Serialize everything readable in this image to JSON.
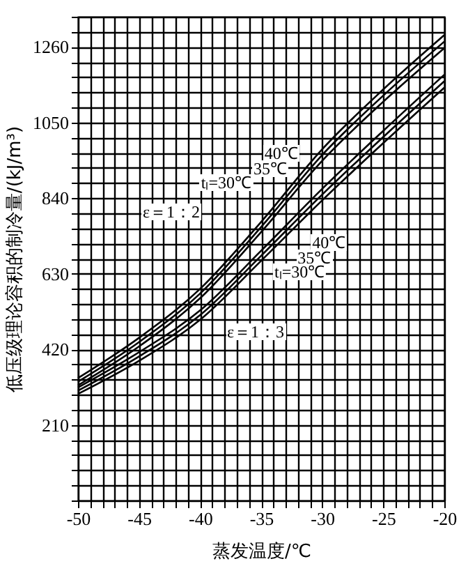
{
  "chart_data": {
    "type": "line",
    "xlabel": "蒸发温度/℃",
    "ylabel": "低压级理论容积的制冷量/(kJ/m³)",
    "x": [
      -50,
      -45,
      -40,
      -35,
      -30,
      -25,
      -20
    ],
    "series": [
      {
        "color": "#000000",
        "values": [
          340,
          452,
          588,
          774,
          976,
          1142,
          1293
        ]
      },
      {
        "color": "#000000",
        "values": [
          330,
          440,
          575,
          760,
          960,
          1125,
          1275
        ]
      },
      {
        "color": "#000000",
        "values": [
          320,
          428,
          562,
          746,
          944,
          1108,
          1257
        ]
      },
      {
        "color": "#000000",
        "values": [
          314,
          412,
          528,
          694,
          866,
          1027,
          1183
        ]
      },
      {
        "color": "#000000",
        "values": [
          305,
          400,
          515,
          680,
          850,
          1010,
          1165
        ]
      },
      {
        "color": "#000000",
        "values": [
          296,
          388,
          502,
          666,
          834,
          993,
          1147
        ]
      }
    ],
    "annotations": [
      "ε＝1：2",
      "ε＝1：3",
      "40℃",
      "35℃",
      "tₗ=30℃",
      "40℃",
      "35℃",
      "tₗ=30℃"
    ],
    "xlim": [
      -50,
      -20
    ],
    "ylim": [
      0,
      1344
    ],
    "xticks": [
      -50,
      {
        "value": -49,
        "label": null
      },
      {
        "value": -48,
        "label": null
      },
      {
        "value": -47,
        "label": null
      },
      {
        "value": -46,
        "label": null
      },
      -45,
      {
        "value": -44,
        "label": null
      },
      {
        "value": -43,
        "label": null
      },
      {
        "value": -42,
        "label": null
      },
      {
        "value": -41,
        "label": null
      },
      -40,
      {
        "value": -39,
        "label": null
      },
      {
        "value": -38,
        "label": null
      },
      {
        "value": -37,
        "label": null
      },
      {
        "value": -36,
        "label": null
      },
      -35,
      {
        "value": -34,
        "label": null
      },
      {
        "value": -33,
        "label": null
      },
      {
        "value": -32,
        "label": null
      },
      {
        "value": -31,
        "label": null
      },
      -30,
      {
        "value": -29,
        "label": null
      },
      {
        "value": -28,
        "label": null
      },
      {
        "value": -27,
        "label": null
      },
      {
        "value": -26,
        "label": null
      },
      -25,
      {
        "value": -24,
        "label": null
      },
      {
        "value": -23,
        "label": null
      },
      {
        "value": -22,
        "label": null
      },
      {
        "value": -21,
        "label": null
      },
      -20
    ],
    "yticks": [
      {
        "value": 0,
        "label": null
      },
      {
        "value": 42,
        "label": null
      },
      {
        "value": 84,
        "label": null
      },
      {
        "value": 126,
        "label": null
      },
      {
        "value": 168,
        "label": null
      },
      210,
      {
        "value": 252,
        "label": null
      },
      {
        "value": 294,
        "label": null
      },
      {
        "value": 336,
        "label": null
      },
      {
        "value": 378,
        "label": null
      },
      420,
      {
        "value": 462,
        "label": null
      },
      {
        "value": 504,
        "label": null
      },
      {
        "value": 546,
        "label": null
      },
      {
        "value": 588,
        "label": null
      },
      630,
      {
        "value": 672,
        "label": null
      },
      {
        "value": 714,
        "label": null
      },
      {
        "value": 756,
        "label": null
      },
      {
        "value": 798,
        "label": null
      },
      840,
      {
        "value": 882,
        "label": null
      },
      {
        "value": 924,
        "label": null
      },
      {
        "value": 966,
        "label": null
      },
      {
        "value": 1008,
        "label": null
      },
      1050,
      {
        "value": 1092,
        "label": null
      },
      {
        "value": 1134,
        "label": null
      },
      {
        "value": 1176,
        "label": null
      },
      {
        "value": 1218,
        "label": null
      },
      1260,
      {
        "value": 1302,
        "label": null
      },
      {
        "value": 1344,
        "label": null
      }
    ],
    "grid": true,
    "marker": "none",
    "line_style": "solid"
  }
}
